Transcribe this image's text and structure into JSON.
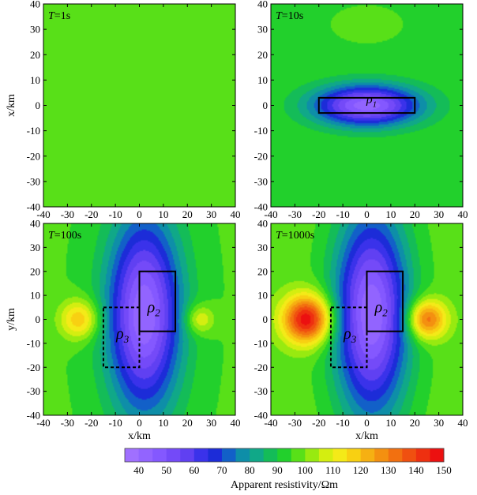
{
  "chart_data": {
    "type": "heatmap",
    "colorbar": {
      "label": "Apparent resistivity/Ωm",
      "colors": [
        "#a070ff",
        "#9264ff",
        "#8458ff",
        "#744af8",
        "#6040f2",
        "#3a32ea",
        "#1c2cd8",
        "#1260c8",
        "#0e8ea8",
        "#10a888",
        "#14bc58",
        "#22d02c",
        "#58e018",
        "#98ea10",
        "#d4ee10",
        "#f4ea18",
        "#f8d012",
        "#f6b012",
        "#f49010",
        "#f27010",
        "#f05010",
        "#ee3010",
        "#ec1010"
      ],
      "min": 40,
      "max": 150,
      "ticks": [
        "40",
        "50",
        "60",
        "70",
        "80",
        "90",
        "100",
        "110",
        "120",
        "130",
        "140",
        "150"
      ]
    },
    "panels": [
      {
        "id": "p1",
        "title": "T=1s",
        "title_prefix": "T",
        "title_value": "=1s",
        "period_s": 1,
        "xlim": [
          -40,
          40
        ],
        "ylim": [
          -40,
          40
        ],
        "xticks": [
          "-40",
          "-30",
          "-20",
          "-10",
          "0",
          "10",
          "20",
          "30",
          "40"
        ],
        "yticks": [
          "40",
          "30",
          "20",
          "10",
          "0",
          "-10",
          "-20",
          "-30",
          "-40"
        ],
        "ylabel": "x/km",
        "xlabel": "",
        "background_rho": 100,
        "anomalies": [
          {
            "cx": 0,
            "cy": 5,
            "rx": 20,
            "ry": 4,
            "delta": 2.5
          },
          {
            "cx": 0,
            "cy": -5,
            "rx": 20,
            "ry": 4,
            "delta": 2.5
          }
        ],
        "boxes": []
      },
      {
        "id": "p2",
        "title": "T=10s",
        "title_prefix": "T",
        "title_value": "=10s",
        "period_s": 10,
        "xlim": [
          -40,
          40
        ],
        "ylim": [
          -40,
          40
        ],
        "xticks": [
          "-40",
          "-30",
          "-20",
          "-10",
          "0",
          "10",
          "20",
          "30",
          "40"
        ],
        "yticks": [
          "40",
          "30",
          "20",
          "10",
          "0",
          "-10",
          "-20",
          "-30",
          "-40"
        ],
        "ylabel": "",
        "xlabel": "",
        "background_rho": 97,
        "anomalies": [
          {
            "cx": 0,
            "cy": 0,
            "rx": 22,
            "ry": 8,
            "delta": -55
          },
          {
            "cx": 0,
            "cy": 32,
            "rx": 12,
            "ry": 6,
            "delta": 3
          }
        ],
        "boxes": [
          {
            "x1": -20,
            "x2": 20,
            "y1": -3,
            "y2": 3,
            "dashed": false,
            "label": "ρ1",
            "label_letter": "ρ",
            "label_sub": "1",
            "lx": 2,
            "ly": 1
          }
        ]
      },
      {
        "id": "p3",
        "title": "T=100s",
        "title_prefix": "T",
        "title_value": "=100s",
        "period_s": 100,
        "xlim": [
          -40,
          40
        ],
        "ylim": [
          -40,
          40
        ],
        "xticks": [
          "-40",
          "-30",
          "-20",
          "-10",
          "0",
          "10",
          "20",
          "30",
          "40"
        ],
        "yticks": [
          "40",
          "30",
          "20",
          "10",
          "0",
          "-10",
          "-20",
          "-30",
          "-40"
        ],
        "ylabel": "y/km",
        "xlabel": "x/km",
        "background_rho": 98,
        "anomalies": [
          {
            "cx": 2,
            "cy": 2,
            "rx": 15,
            "ry": 40,
            "delta": -58
          },
          {
            "cx": -25,
            "cy": 0,
            "rx": 8,
            "ry": 8,
            "delta": 26
          },
          {
            "cx": 25,
            "cy": 0,
            "rx": 6,
            "ry": 6,
            "delta": 18
          }
        ],
        "boxes": [
          {
            "x1": 0,
            "x2": 15,
            "y1": -5,
            "y2": 20,
            "dashed": false,
            "label": "ρ2",
            "label_letter": "ρ",
            "label_sub": "2",
            "lx": 6,
            "ly": 3
          },
          {
            "x1": -15,
            "x2": 0,
            "y1": -20,
            "y2": 5,
            "dashed": true,
            "label": "ρ3",
            "label_letter": "ρ",
            "label_sub": "3",
            "lx": -7,
            "ly": -8
          }
        ]
      },
      {
        "id": "p4",
        "title": "T=1000s",
        "title_prefix": "T",
        "title_value": "=1000s",
        "period_s": 1000,
        "xlim": [
          -40,
          40
        ],
        "ylim": [
          -40,
          40
        ],
        "xticks": [
          "-40",
          "-30",
          "-20",
          "-10",
          "0",
          "10",
          "20",
          "30",
          "40"
        ],
        "yticks": [
          "40",
          "30",
          "20",
          "10",
          "0",
          "-10",
          "-20",
          "-30",
          "-40"
        ],
        "ylabel": "",
        "xlabel": "x/km",
        "background_rho": 100,
        "anomalies": [
          {
            "cx": 2,
            "cy": 2,
            "rx": 15,
            "ry": 42,
            "delta": -60
          },
          {
            "cx": -25,
            "cy": 0,
            "rx": 10,
            "ry": 10,
            "delta": 55
          },
          {
            "cx": 25,
            "cy": 0,
            "rx": 8,
            "ry": 8,
            "delta": 40
          }
        ],
        "boxes": [
          {
            "x1": 0,
            "x2": 15,
            "y1": -5,
            "y2": 20,
            "dashed": false,
            "label": "ρ2",
            "label_letter": "ρ",
            "label_sub": "2",
            "lx": 6,
            "ly": 3
          },
          {
            "x1": -15,
            "x2": 0,
            "y1": -20,
            "y2": 5,
            "dashed": true,
            "label": "ρ3",
            "label_letter": "ρ",
            "label_sub": "3",
            "lx": -7,
            "ly": -8
          }
        ]
      }
    ]
  }
}
